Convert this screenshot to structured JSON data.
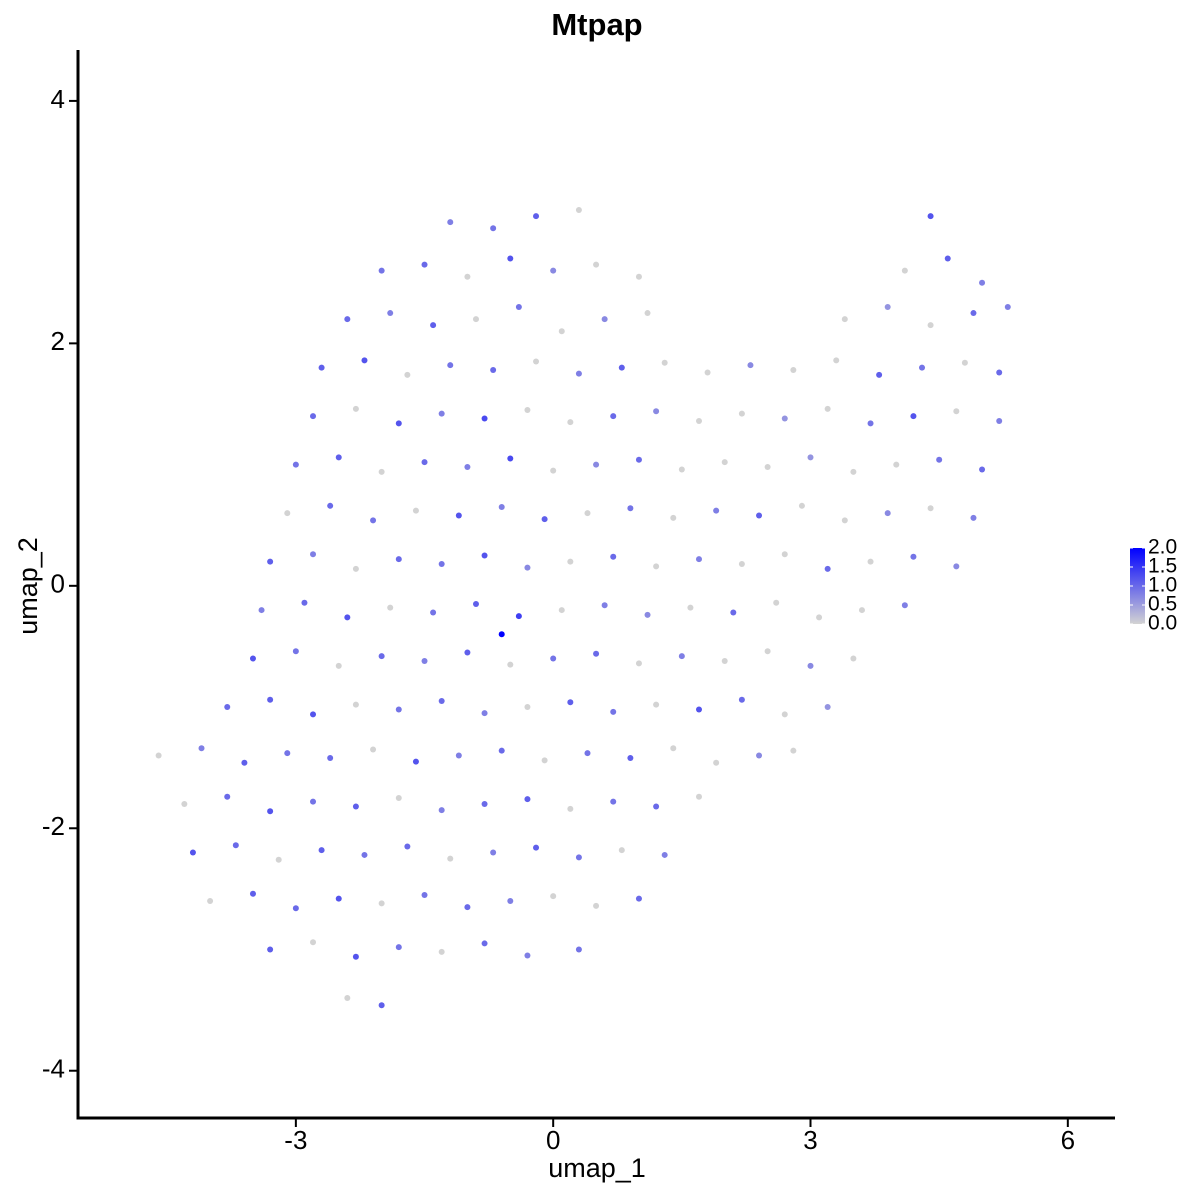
{
  "chart_data": {
    "type": "scatter",
    "title": "Mtpap",
    "xlabel": "umap_1",
    "ylabel": "umap_2",
    "x": [
      -1.2,
      -0.7,
      -0.2,
      0.3,
      4.4,
      -2.0,
      -1.5,
      -1.0,
      -0.5,
      0.0,
      0.5,
      1.0,
      4.1,
      4.6,
      5.0,
      -2.4,
      -1.9,
      -1.4,
      -0.9,
      -0.4,
      0.1,
      0.6,
      1.1,
      3.4,
      3.9,
      4.4,
      4.9,
      5.3,
      -2.7,
      -2.2,
      -1.7,
      -1.2,
      -0.7,
      -0.2,
      0.3,
      0.8,
      1.3,
      1.8,
      2.3,
      2.8,
      3.3,
      3.8,
      4.3,
      4.8,
      5.2,
      -2.8,
      -2.3,
      -1.8,
      -1.3,
      -0.8,
      -0.3,
      0.2,
      0.7,
      1.2,
      1.7,
      2.2,
      2.7,
      3.2,
      3.7,
      4.2,
      4.7,
      5.2,
      -3.0,
      -2.5,
      -2.0,
      -1.5,
      -1.0,
      -0.5,
      0.0,
      0.5,
      1.0,
      1.5,
      2.0,
      2.5,
      3.0,
      3.5,
      4.0,
      4.5,
      5.0,
      -3.1,
      -2.6,
      -2.1,
      -1.6,
      -1.1,
      -0.6,
      -0.1,
      0.4,
      0.9,
      1.4,
      1.9,
      2.4,
      2.9,
      3.4,
      3.9,
      4.4,
      4.9,
      -3.3,
      -2.8,
      -2.3,
      -1.8,
      -1.3,
      -0.8,
      -0.3,
      0.2,
      0.7,
      1.2,
      1.7,
      2.2,
      2.7,
      3.2,
      3.7,
      4.2,
      4.7,
      -3.4,
      -2.9,
      -2.4,
      -1.9,
      -1.4,
      -0.9,
      -0.4,
      0.1,
      0.6,
      1.1,
      1.6,
      2.1,
      2.6,
      3.1,
      3.6,
      4.1,
      -3.5,
      -3.0,
      -2.5,
      -2.0,
      -1.5,
      -1.0,
      -0.5,
      0.0,
      0.5,
      1.0,
      1.5,
      2.0,
      2.5,
      3.0,
      3.5,
      -3.8,
      -3.3,
      -2.8,
      -2.3,
      -1.8,
      -1.3,
      -0.8,
      -0.3,
      0.2,
      0.7,
      1.2,
      1.7,
      2.2,
      2.7,
      3.2,
      -4.6,
      -4.1,
      -3.6,
      -3.1,
      -2.6,
      -2.1,
      -1.6,
      -1.1,
      -0.6,
      -0.1,
      0.4,
      0.9,
      1.4,
      1.9,
      2.4,
      2.8,
      -4.3,
      -3.8,
      -3.3,
      -2.8,
      -2.3,
      -1.8,
      -1.3,
      -0.8,
      -0.3,
      0.2,
      0.7,
      1.2,
      1.7,
      -4.2,
      -3.7,
      -3.2,
      -2.7,
      -2.2,
      -1.7,
      -1.2,
      -0.7,
      -0.2,
      0.3,
      0.8,
      1.3,
      -4.0,
      -3.5,
      -3.0,
      -2.5,
      -2.0,
      -1.5,
      -1.0,
      -0.5,
      0.0,
      0.5,
      1.0,
      -3.3,
      -2.8,
      -2.3,
      -1.8,
      -1.3,
      -0.8,
      -0.3,
      0.3,
      -2.4,
      -2.0,
      -0.6
    ],
    "y": [
      3.0,
      2.95,
      3.05,
      3.1,
      3.05,
      2.6,
      2.65,
      2.55,
      2.7,
      2.6,
      2.65,
      2.55,
      2.6,
      2.7,
      2.5,
      2.2,
      2.25,
      2.15,
      2.2,
      2.3,
      2.1,
      2.2,
      2.25,
      2.2,
      2.3,
      2.15,
      2.25,
      2.3,
      1.8,
      1.86,
      1.74,
      1.82,
      1.78,
      1.85,
      1.75,
      1.8,
      1.84,
      1.76,
      1.82,
      1.78,
      1.86,
      1.74,
      1.8,
      1.84,
      1.76,
      1.4,
      1.46,
      1.34,
      1.42,
      1.38,
      1.45,
      1.35,
      1.4,
      1.44,
      1.36,
      1.42,
      1.38,
      1.46,
      1.34,
      1.4,
      1.44,
      1.36,
      1.0,
      1.06,
      0.94,
      1.02,
      0.98,
      1.05,
      0.95,
      1.0,
      1.04,
      0.96,
      1.02,
      0.98,
      1.06,
      0.94,
      1.0,
      1.04,
      0.96,
      0.6,
      0.66,
      0.54,
      0.62,
      0.58,
      0.65,
      0.55,
      0.6,
      0.64,
      0.56,
      0.62,
      0.58,
      0.66,
      0.54,
      0.6,
      0.64,
      0.56,
      0.2,
      0.26,
      0.14,
      0.22,
      0.18,
      0.25,
      0.15,
      0.2,
      0.24,
      0.16,
      0.22,
      0.18,
      0.26,
      0.14,
      0.2,
      0.24,
      0.16,
      -0.2,
      -0.14,
      -0.26,
      -0.18,
      -0.22,
      -0.15,
      -0.25,
      -0.2,
      -0.16,
      -0.24,
      -0.18,
      -0.22,
      -0.14,
      -0.26,
      -0.2,
      -0.16,
      -0.6,
      -0.54,
      -0.66,
      -0.58,
      -0.62,
      -0.55,
      -0.65,
      -0.6,
      -0.56,
      -0.64,
      -0.58,
      -0.62,
      -0.54,
      -0.66,
      -0.6,
      -1.0,
      -0.94,
      -1.06,
      -0.98,
      -1.02,
      -0.95,
      -1.05,
      -1.0,
      -0.96,
      -1.04,
      -0.98,
      -1.02,
      -0.94,
      -1.06,
      -1.0,
      -1.4,
      -1.34,
      -1.46,
      -1.38,
      -1.42,
      -1.35,
      -1.45,
      -1.4,
      -1.36,
      -1.44,
      -1.38,
      -1.42,
      -1.34,
      -1.46,
      -1.4,
      -1.36,
      -1.8,
      -1.74,
      -1.86,
      -1.78,
      -1.82,
      -1.75,
      -1.85,
      -1.8,
      -1.76,
      -1.84,
      -1.78,
      -1.82,
      -1.74,
      -2.2,
      -2.14,
      -2.26,
      -2.18,
      -2.22,
      -2.15,
      -2.25,
      -2.2,
      -2.16,
      -2.24,
      -2.18,
      -2.22,
      -2.6,
      -2.54,
      -2.66,
      -2.58,
      -2.62,
      -2.55,
      -2.65,
      -2.6,
      -2.56,
      -2.64,
      -2.58,
      -3.0,
      -2.94,
      -3.06,
      -2.98,
      -3.02,
      -2.95,
      -3.05,
      -3.0,
      -3.4,
      -3.46,
      -0.4
    ],
    "values": [
      0.8,
      0.9,
      1.1,
      0,
      1.2,
      0.9,
      1.0,
      0,
      1.2,
      0.7,
      0,
      0,
      0,
      1.1,
      0.8,
      1.0,
      0.8,
      1.1,
      0,
      0.9,
      0,
      0.7,
      0,
      0,
      0.6,
      0,
      1.0,
      0.8,
      1.1,
      1.2,
      0,
      0.9,
      1.0,
      0,
      0.8,
      1.1,
      0,
      0,
      0.7,
      0,
      0,
      1.1,
      0.9,
      0,
      1.0,
      1.0,
      0,
      1.2,
      0.8,
      1.3,
      0,
      0,
      1.0,
      0.7,
      0,
      0,
      0.6,
      0,
      0.9,
      1.2,
      0,
      0.8,
      0.9,
      1.1,
      0,
      1.0,
      0.8,
      1.3,
      0,
      0.7,
      1.0,
      0,
      0,
      0,
      0.6,
      0,
      0,
      0.9,
      1.0,
      0,
      1.0,
      0.9,
      0,
      1.2,
      0.8,
      1.1,
      0,
      0.9,
      0,
      0.8,
      1.1,
      0,
      0,
      0.7,
      0,
      0.8,
      1.1,
      0.8,
      0,
      1.0,
      0.9,
      1.2,
      0.7,
      0,
      1.0,
      0,
      0.8,
      0,
      0,
      1.0,
      0,
      0.9,
      0.7,
      0.8,
      1.0,
      1.2,
      0,
      0.9,
      1.1,
      1.4,
      0,
      0.8,
      0.7,
      0,
      1.0,
      0,
      0,
      0,
      0.8,
      1.2,
      0.9,
      0,
      1.0,
      0.8,
      1.1,
      0,
      0.9,
      1.0,
      0,
      0.8,
      0,
      0,
      0.7,
      0,
      1.0,
      1.1,
      1.2,
      0,
      0.9,
      1.0,
      0.8,
      0,
      1.1,
      0.9,
      0,
      1.2,
      1.0,
      0,
      0.6,
      0,
      0.8,
      1.1,
      0.9,
      1.0,
      0,
      1.2,
      0.8,
      1.0,
      0,
      0.9,
      1.1,
      0,
      0,
      0.7,
      0,
      0,
      1.0,
      1.2,
      0.9,
      1.1,
      0,
      0.8,
      1.0,
      1.1,
      0,
      0.9,
      1.0,
      0,
      1.2,
      1.0,
      0,
      1.1,
      0.9,
      1.0,
      0,
      0.8,
      1.1,
      0.9,
      0,
      0.8,
      0,
      1.1,
      1.0,
      1.2,
      0,
      0.9,
      1.0,
      0.8,
      0,
      0,
      1.0,
      1.1,
      0,
      1.2,
      0.9,
      0,
      1.0,
      0.8,
      0.9,
      0,
      1.1,
      2.0
    ],
    "xlim": [
      -5.54,
      6.55
    ],
    "ylim": [
      -4.39,
      4.42
    ],
    "xticks": [
      -3,
      0,
      3,
      6
    ],
    "yticks": [
      -4,
      -2,
      0,
      2,
      4
    ],
    "colorbar": {
      "lim": [
        0,
        2
      ],
      "colors": [
        "#d3d3d3",
        "#0000ff"
      ],
      "ticks": [
        {
          "value": 0,
          "label": "0.0"
        },
        {
          "value": 0.5,
          "label": "0.5"
        },
        {
          "value": 1,
          "label": "1.0"
        },
        {
          "value": 1.5,
          "label": "1.5"
        },
        {
          "value": 2,
          "label": "2.0"
        }
      ]
    }
  }
}
